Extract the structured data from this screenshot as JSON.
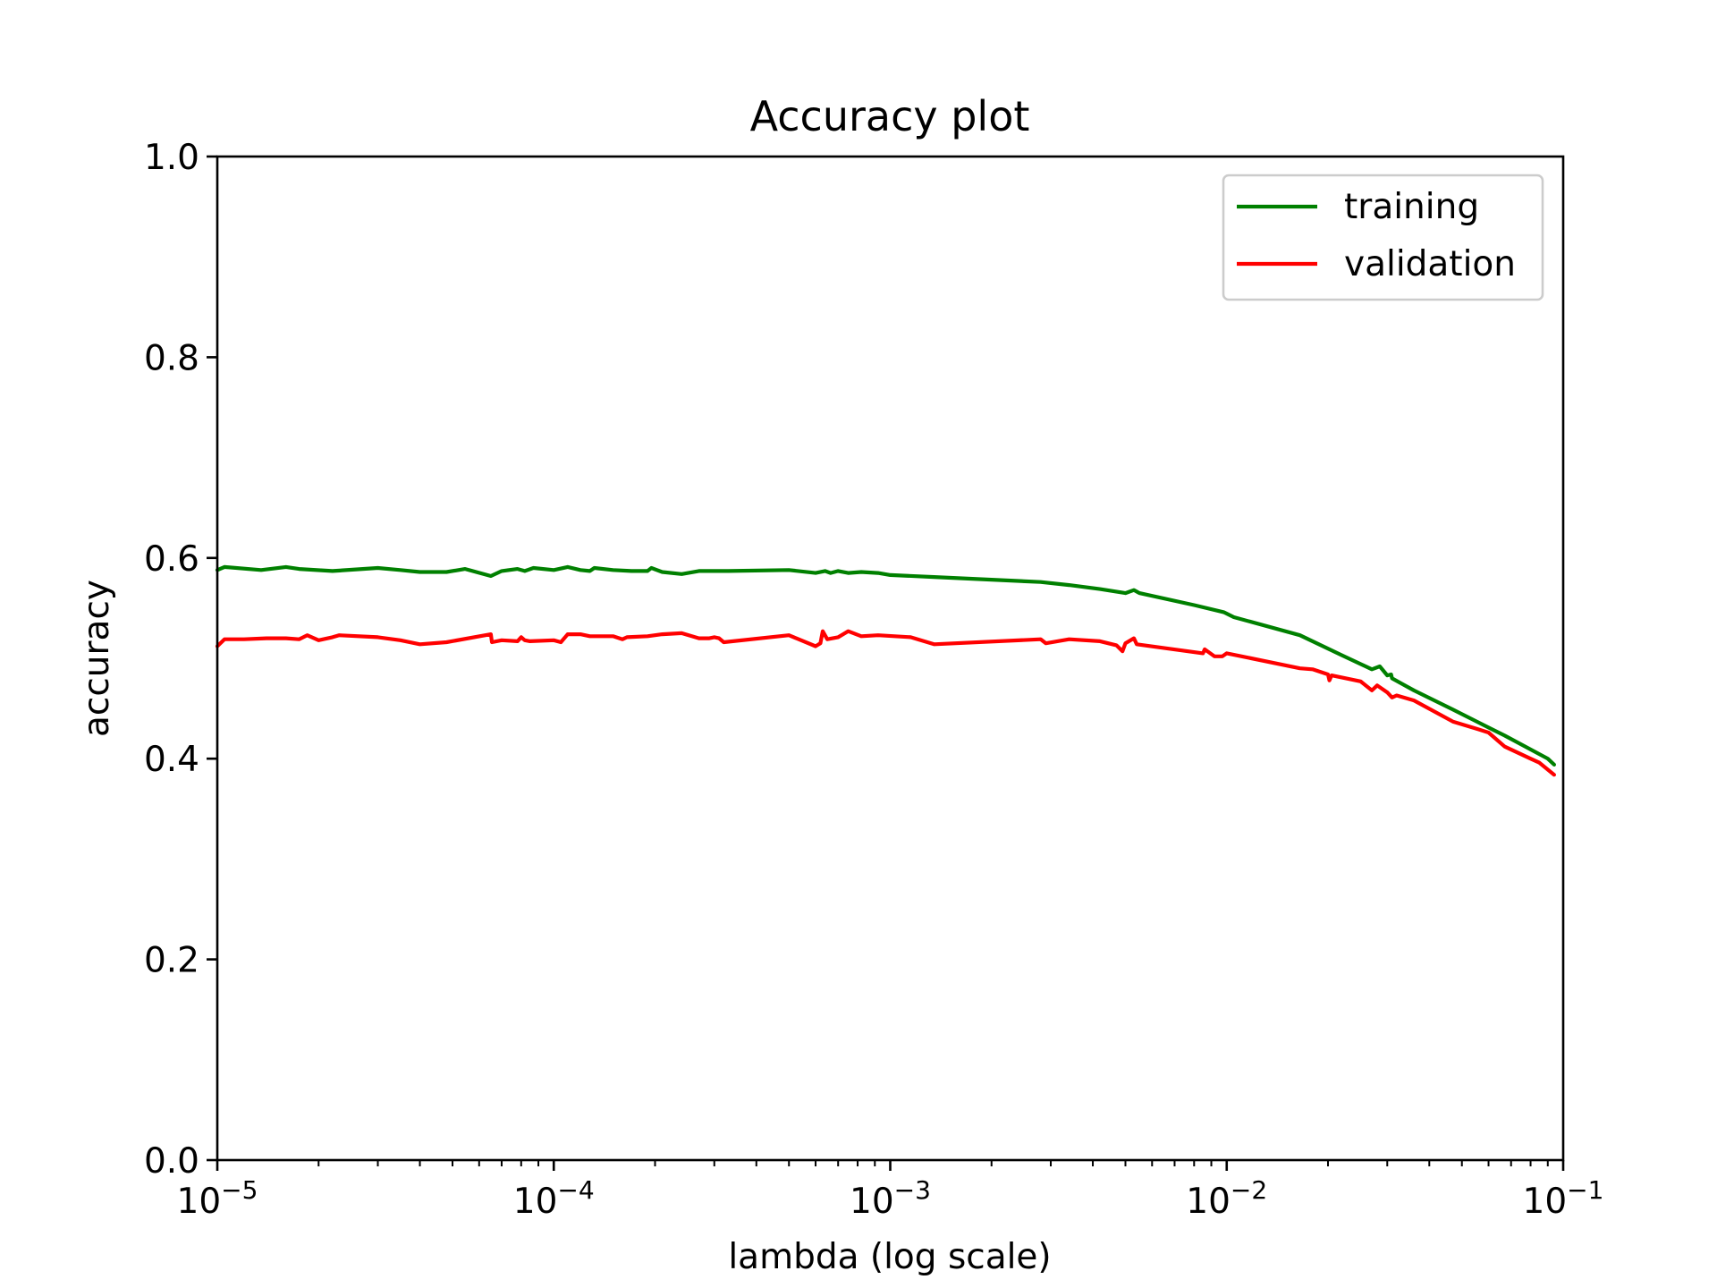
{
  "chart_data": {
    "type": "line",
    "title": "Accuracy plot",
    "xlabel": "lambda (log scale)",
    "ylabel": "accuracy",
    "xscale": "log",
    "xlim": [
      1e-05,
      0.1
    ],
    "ylim": [
      0.0,
      1.0
    ],
    "xticks": [
      {
        "value": 1e-05,
        "base": "10",
        "exp": "−5"
      },
      {
        "value": 0.0001,
        "base": "10",
        "exp": "−4"
      },
      {
        "value": 0.001,
        "base": "10",
        "exp": "−3"
      },
      {
        "value": 0.01,
        "base": "10",
        "exp": "−2"
      },
      {
        "value": 0.1,
        "base": "10",
        "exp": "−1"
      }
    ],
    "yticks": [
      {
        "value": 0.0,
        "label": "0.0"
      },
      {
        "value": 0.2,
        "label": "0.2"
      },
      {
        "value": 0.4,
        "label": "0.4"
      },
      {
        "value": 0.6,
        "label": "0.6"
      },
      {
        "value": 0.8,
        "label": "0.8"
      },
      {
        "value": 1.0,
        "label": "1.0"
      }
    ],
    "grid": false,
    "legend": "top-right",
    "series": [
      {
        "name": "training",
        "color": "#008000",
        "x": [
          1e-05,
          1.05e-05,
          1.35e-05,
          1.6e-05,
          1.75e-05,
          2.2e-05,
          3e-05,
          3.5e-05,
          4e-05,
          4.8e-05,
          5.45e-05,
          6.5e-05,
          7e-05,
          7.8e-05,
          8.2e-05,
          8.7e-05,
          0.0001,
          0.00011,
          0.00012,
          0.000128,
          0.000132,
          0.00015,
          0.00017,
          0.00019,
          0.000195,
          0.00021,
          0.00024,
          0.00027,
          0.00033,
          0.0005,
          0.0006,
          0.00064,
          0.000665,
          0.0007,
          0.00075,
          0.00082,
          0.00092,
          0.001,
          0.00135,
          0.0028,
          0.0034,
          0.0042,
          0.005,
          0.0053,
          0.0055,
          0.008,
          0.0098,
          0.0105,
          0.0165,
          0.022,
          0.027,
          0.0285,
          0.03,
          0.0308,
          0.031,
          0.036,
          0.047,
          0.06,
          0.067,
          0.09,
          0.094
        ],
        "y": [
          0.588,
          0.591,
          0.588,
          0.591,
          0.589,
          0.587,
          0.59,
          0.588,
          0.586,
          0.586,
          0.589,
          0.582,
          0.587,
          0.589,
          0.587,
          0.59,
          0.588,
          0.591,
          0.588,
          0.587,
          0.59,
          0.588,
          0.587,
          0.587,
          0.59,
          0.586,
          0.584,
          0.587,
          0.587,
          0.588,
          0.585,
          0.587,
          0.585,
          0.587,
          0.585,
          0.586,
          0.585,
          0.583,
          0.581,
          0.576,
          0.573,
          0.569,
          0.565,
          0.568,
          0.565,
          0.553,
          0.546,
          0.541,
          0.523,
          0.503,
          0.489,
          0.492,
          0.483,
          0.484,
          0.48,
          0.468,
          0.449,
          0.431,
          0.423,
          0.4,
          0.394
        ]
      },
      {
        "name": "validation",
        "color": "#ff0000",
        "x": [
          1e-05,
          1.05e-05,
          1.2e-05,
          1.4e-05,
          1.6e-05,
          1.75e-05,
          1.85e-05,
          2e-05,
          2.2e-05,
          2.3e-05,
          3e-05,
          3.5e-05,
          4e-05,
          4.8e-05,
          6.5e-05,
          6.55e-05,
          7e-05,
          7.8e-05,
          8e-05,
          8.2e-05,
          8.5e-05,
          0.0001,
          0.000105,
          0.00011,
          0.00012,
          0.000128,
          0.00015,
          0.00016,
          0.000165,
          0.00019,
          0.00021,
          0.00024,
          0.00027,
          0.00029,
          0.0003,
          0.00031,
          0.00032,
          0.0005,
          0.0006,
          0.00062,
          0.00063,
          0.00065,
          0.0007,
          0.00075,
          0.00082,
          0.00092,
          0.00115,
          0.00135,
          0.0028,
          0.0029,
          0.0034,
          0.0042,
          0.0047,
          0.0049,
          0.005,
          0.0053,
          0.0054,
          0.0085,
          0.0086,
          0.0092,
          0.0097,
          0.01,
          0.0165,
          0.018,
          0.02,
          0.0202,
          0.0205,
          0.025,
          0.027,
          0.028,
          0.03,
          0.031,
          0.032,
          0.036,
          0.047,
          0.055,
          0.06,
          0.067,
          0.08,
          0.085,
          0.094
        ],
        "y": [
          0.512,
          0.519,
          0.519,
          0.52,
          0.52,
          0.519,
          0.523,
          0.518,
          0.521,
          0.523,
          0.521,
          0.518,
          0.514,
          0.516,
          0.524,
          0.516,
          0.518,
          0.517,
          0.521,
          0.518,
          0.517,
          0.518,
          0.516,
          0.524,
          0.524,
          0.522,
          0.522,
          0.519,
          0.521,
          0.522,
          0.524,
          0.525,
          0.52,
          0.52,
          0.521,
          0.52,
          0.516,
          0.523,
          0.512,
          0.515,
          0.527,
          0.519,
          0.521,
          0.527,
          0.522,
          0.523,
          0.521,
          0.514,
          0.519,
          0.515,
          0.519,
          0.517,
          0.513,
          0.507,
          0.515,
          0.52,
          0.514,
          0.505,
          0.509,
          0.502,
          0.502,
          0.505,
          0.49,
          0.489,
          0.484,
          0.478,
          0.483,
          0.477,
          0.468,
          0.473,
          0.466,
          0.461,
          0.463,
          0.458,
          0.437,
          0.43,
          0.426,
          0.412,
          0.4,
          0.396,
          0.384
        ]
      }
    ]
  }
}
